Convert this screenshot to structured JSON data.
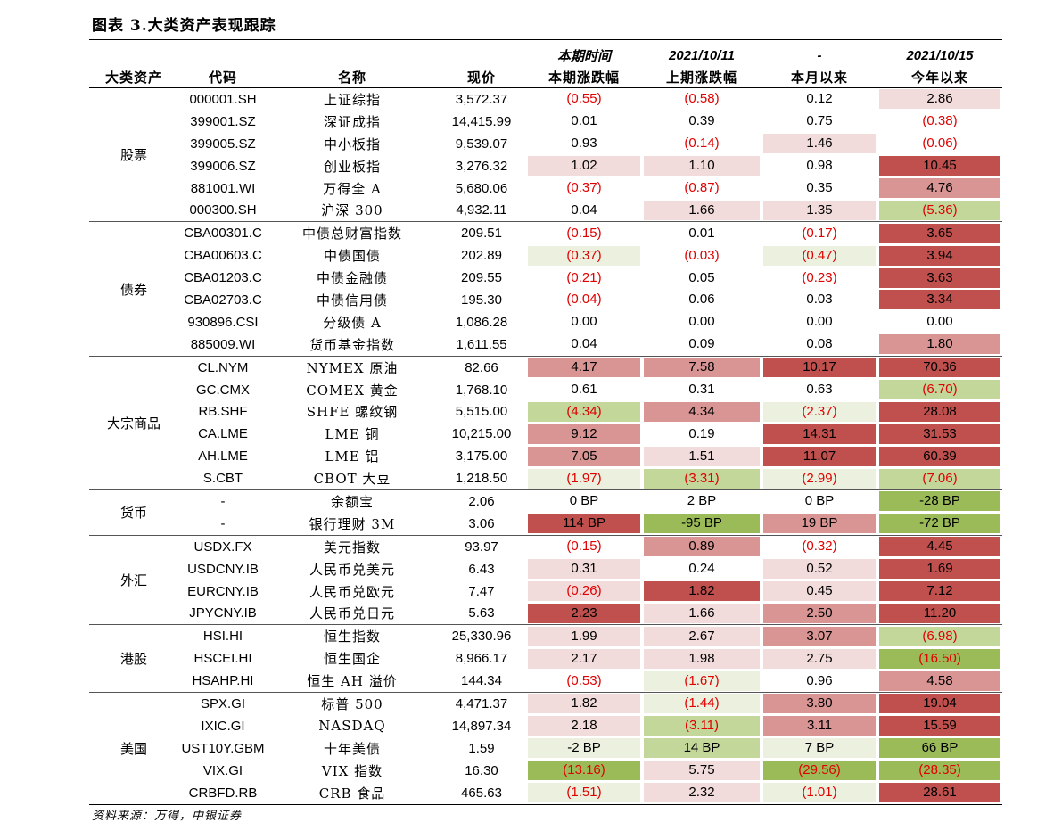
{
  "title": "图表 3.大类资产表现跟踪",
  "header": {
    "row1": [
      "",
      "",
      "",
      "",
      "本期时间",
      "2021/10/11",
      "-",
      "2021/10/15"
    ],
    "row2": [
      "大类资产",
      "代码",
      "名称",
      "现价",
      "本期涨跌幅",
      "上期涨跌幅",
      "本月以来",
      "今年以来"
    ]
  },
  "groups": [
    {
      "category": "股票",
      "rows": [
        {
          "code": "000001.SH",
          "name": "上证综指",
          "price": "3,572.37",
          "c1": "(0.55)",
          "c2": "(0.58)",
          "c3": "0.12",
          "c4": "2.86",
          "s1": "",
          "s2": "",
          "s3": "",
          "s4": "r1"
        },
        {
          "code": "399001.SZ",
          "name": "深证成指",
          "price": "14,415.99",
          "c1": "0.01",
          "c2": "0.39",
          "c3": "0.75",
          "c4": "(0.38)",
          "s1": "",
          "s2": "",
          "s3": "",
          "s4": ""
        },
        {
          "code": "399005.SZ",
          "name": "中小板指",
          "price": "9,539.07",
          "c1": "0.93",
          "c2": "(0.14)",
          "c3": "1.46",
          "c4": "(0.06)",
          "s1": "",
          "s2": "",
          "s3": "r1",
          "s4": ""
        },
        {
          "code": "399006.SZ",
          "name": "创业板指",
          "price": "3,276.32",
          "c1": "1.02",
          "c2": "1.10",
          "c3": "0.98",
          "c4": "10.45",
          "s1": "r1",
          "s2": "r1",
          "s3": "",
          "s4": "r3"
        },
        {
          "code": "881001.WI",
          "name": "万得全 A",
          "price": "5,680.06",
          "c1": "(0.37)",
          "c2": "(0.87)",
          "c3": "0.35",
          "c4": "4.76",
          "s1": "",
          "s2": "",
          "s3": "",
          "s4": "r2"
        },
        {
          "code": "000300.SH",
          "name": "沪深 300",
          "price": "4,932.11",
          "c1": "0.04",
          "c2": "1.66",
          "c3": "1.35",
          "c4": "(5.36)",
          "s1": "",
          "s2": "r1",
          "s3": "r1",
          "s4": "g2"
        }
      ]
    },
    {
      "category": "债券",
      "rows": [
        {
          "code": "CBA00301.C",
          "name": "中债总财富指数",
          "price": "209.51",
          "c1": "(0.15)",
          "c2": "0.01",
          "c3": "(0.17)",
          "c4": "3.65",
          "s1": "",
          "s2": "",
          "s3": "",
          "s4": "r3"
        },
        {
          "code": "CBA00603.C",
          "name": "中债国债",
          "price": "202.89",
          "c1": "(0.37)",
          "c2": "(0.03)",
          "c3": "(0.47)",
          "c4": "3.94",
          "s1": "g1",
          "s2": "",
          "s3": "g1",
          "s4": "r3"
        },
        {
          "code": "CBA01203.C",
          "name": "中债金融债",
          "price": "209.55",
          "c1": "(0.21)",
          "c2": "0.05",
          "c3": "(0.23)",
          "c4": "3.63",
          "s1": "",
          "s2": "",
          "s3": "",
          "s4": "r3"
        },
        {
          "code": "CBA02703.C",
          "name": "中债信用债",
          "price": "195.30",
          "c1": "(0.04)",
          "c2": "0.06",
          "c3": "0.03",
          "c4": "3.34",
          "s1": "",
          "s2": "",
          "s3": "",
          "s4": "r3"
        },
        {
          "code": "930896.CSI",
          "name": "分级债 A",
          "price": "1,086.28",
          "c1": "0.00",
          "c2": "0.00",
          "c3": "0.00",
          "c4": "0.00",
          "s1": "",
          "s2": "",
          "s3": "",
          "s4": ""
        },
        {
          "code": "885009.WI",
          "name": "货币基金指数",
          "price": "1,611.55",
          "c1": "0.04",
          "c2": "0.09",
          "c3": "0.08",
          "c4": "1.80",
          "s1": "",
          "s2": "",
          "s3": "",
          "s4": "r2"
        }
      ]
    },
    {
      "category": "大宗商品",
      "rows": [
        {
          "code": "CL.NYM",
          "name": "NYMEX 原油",
          "price": "82.66",
          "c1": "4.17",
          "c2": "7.58",
          "c3": "10.17",
          "c4": "70.36",
          "s1": "r2",
          "s2": "r2",
          "s3": "r3",
          "s4": "r3"
        },
        {
          "code": "GC.CMX",
          "name": "COMEX 黄金",
          "price": "1,768.10",
          "c1": "0.61",
          "c2": "0.31",
          "c3": "0.63",
          "c4": "(6.70)",
          "s1": "",
          "s2": "",
          "s3": "",
          "s4": "g2"
        },
        {
          "code": "RB.SHF",
          "name": "SHFE 螺纹钢",
          "price": "5,515.00",
          "c1": "(4.34)",
          "c2": "4.34",
          "c3": "(2.37)",
          "c4": "28.08",
          "s1": "g2",
          "s2": "r2",
          "s3": "g1",
          "s4": "r3"
        },
        {
          "code": "CA.LME",
          "name": "LME 铜",
          "price": "10,215.00",
          "c1": "9.12",
          "c2": "0.19",
          "c3": "14.31",
          "c4": "31.53",
          "s1": "r2",
          "s2": "",
          "s3": "r3",
          "s4": "r3"
        },
        {
          "code": "AH.LME",
          "name": "LME 铝",
          "price": "3,175.00",
          "c1": "7.05",
          "c2": "1.51",
          "c3": "11.07",
          "c4": "60.39",
          "s1": "r2",
          "s2": "r1",
          "s3": "r3",
          "s4": "r3"
        },
        {
          "code": "S.CBT",
          "name": "CBOT 大豆",
          "price": "1,218.50",
          "c1": "(1.97)",
          "c2": "(3.31)",
          "c3": "(2.99)",
          "c4": "(7.06)",
          "s1": "g1",
          "s2": "g2",
          "s3": "g1",
          "s4": "g2"
        }
      ]
    },
    {
      "category": "货币",
      "rows": [
        {
          "code": "-",
          "name": "余额宝",
          "price": "2.06",
          "c1": "0 BP",
          "c2": "2 BP",
          "c3": "0 BP",
          "c4": "-28 BP",
          "s1": "",
          "s2": "",
          "s3": "",
          "s4": "g3"
        },
        {
          "code": "-",
          "name": "银行理财 3M",
          "price": "3.06",
          "c1": "114 BP",
          "c2": "-95 BP",
          "c3": "19 BP",
          "c4": "-72 BP",
          "s1": "r3",
          "s2": "g3",
          "s3": "r2",
          "s4": "g3"
        }
      ]
    },
    {
      "category": "外汇",
      "rows": [
        {
          "code": "USDX.FX",
          "name": "美元指数",
          "price": "93.97",
          "c1": "(0.15)",
          "c2": "0.89",
          "c3": "(0.32)",
          "c4": "4.45",
          "s1": "",
          "s2": "r2",
          "s3": "",
          "s4": "r3"
        },
        {
          "code": "USDCNY.IB",
          "name": "人民币兑美元",
          "price": "6.43",
          "c1": "0.31",
          "c2": "0.24",
          "c3": "0.52",
          "c4": "1.69",
          "s1": "r1",
          "s2": "",
          "s3": "r1",
          "s4": "r3"
        },
        {
          "code": "EURCNY.IB",
          "name": "人民币兑欧元",
          "price": "7.47",
          "c1": "(0.26)",
          "c2": "1.82",
          "c3": "0.45",
          "c4": "7.12",
          "s1": "r1",
          "s2": "r3",
          "s3": "r1",
          "s4": "r3"
        },
        {
          "code": "JPYCNY.IB",
          "name": "人民币兑日元",
          "price": "5.63",
          "c1": "2.23",
          "c2": "1.66",
          "c3": "2.50",
          "c4": "11.20",
          "s1": "r3",
          "s2": "r1",
          "s3": "r2",
          "s4": "r3"
        }
      ]
    },
    {
      "category": "港股",
      "rows": [
        {
          "code": "HSI.HI",
          "name": "恒生指数",
          "price": "25,330.96",
          "c1": "1.99",
          "c2": "2.67",
          "c3": "3.07",
          "c4": "(6.98)",
          "s1": "r1",
          "s2": "r1",
          "s3": "r2",
          "s4": "g2"
        },
        {
          "code": "HSCEI.HI",
          "name": "恒生国企",
          "price": "8,966.17",
          "c1": "2.17",
          "c2": "1.98",
          "c3": "2.75",
          "c4": "(16.50)",
          "s1": "r1",
          "s2": "r1",
          "s3": "r1",
          "s4": "g3"
        },
        {
          "code": "HSAHP.HI",
          "name": "恒生 AH 溢价",
          "price": "144.34",
          "c1": "(0.53)",
          "c2": "(1.67)",
          "c3": "0.96",
          "c4": "4.58",
          "s1": "",
          "s2": "g1",
          "s3": "",
          "s4": "r2"
        }
      ]
    },
    {
      "category": "美国",
      "rows": [
        {
          "code": "SPX.GI",
          "name": "标普 500",
          "price": "4,471.37",
          "c1": "1.82",
          "c2": "(1.44)",
          "c3": "3.80",
          "c4": "19.04",
          "s1": "r1",
          "s2": "g1",
          "s3": "r2",
          "s4": "r3"
        },
        {
          "code": "IXIC.GI",
          "name": "NASDAQ",
          "price": "14,897.34",
          "c1": "2.18",
          "c2": "(3.11)",
          "c3": "3.11",
          "c4": "15.59",
          "s1": "r1",
          "s2": "g2",
          "s3": "r2",
          "s4": "r3"
        },
        {
          "code": "UST10Y.GBM",
          "name": "十年美债",
          "price": "1.59",
          "c1": "-2 BP",
          "c2": "14 BP",
          "c3": "7 BP",
          "c4": "66 BP",
          "s1": "g1",
          "s2": "g2",
          "s3": "g1",
          "s4": "g3"
        },
        {
          "code": "VIX.GI",
          "name": "VIX 指数",
          "price": "16.30",
          "c1": "(13.16)",
          "c2": "5.75",
          "c3": "(29.56)",
          "c4": "(28.35)",
          "s1": "g3",
          "s2": "r1",
          "s3": "g3",
          "s4": "g3"
        },
        {
          "code": "CRBFD.RB",
          "name": "CRB 食品",
          "price": "465.63",
          "c1": "(1.51)",
          "c2": "2.32",
          "c3": "(1.01)",
          "c4": "28.61",
          "s1": "g1",
          "s2": "r1",
          "s3": "g1",
          "s4": "r3"
        }
      ]
    }
  ],
  "source": "资料来源：万得，中银证券"
}
